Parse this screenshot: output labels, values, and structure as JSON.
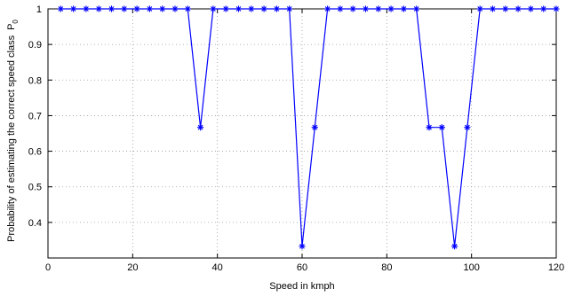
{
  "chart_data": {
    "type": "line",
    "xlabel": "Speed in kmph",
    "ylabel": "Probability of estimating the correct speed class",
    "ylabel_symbol": "P",
    "ylabel_subscript": "0",
    "xlim": [
      0,
      120
    ],
    "ylim": [
      0.3,
      1.0
    ],
    "xticks": [
      0,
      20,
      40,
      60,
      80,
      100,
      120
    ],
    "yticks": [
      0.4,
      0.5,
      0.6,
      0.7,
      0.8,
      0.9,
      1
    ],
    "xtick_labels": [
      "0",
      "20",
      "40",
      "60",
      "80",
      "100",
      "120"
    ],
    "ytick_labels": [
      "0.4",
      "0.5",
      "0.6",
      "0.7",
      "0.8",
      "0.9",
      "1"
    ],
    "grid": true,
    "color": "#0000ff",
    "marker": "star",
    "series": [
      {
        "x": [
          3,
          6,
          9,
          12,
          15,
          18,
          21,
          24,
          27,
          30,
          33,
          36,
          39,
          42,
          45,
          48,
          51,
          54,
          57,
          60,
          63,
          66,
          69,
          72,
          75,
          78,
          81,
          84,
          87,
          90,
          93,
          96,
          99,
          102,
          105,
          108,
          111,
          114,
          117,
          120
        ],
        "values": [
          1,
          1,
          1,
          1,
          1,
          1,
          1,
          1,
          1,
          1,
          1,
          0.667,
          1,
          1,
          1,
          1,
          1,
          1,
          1,
          0.333,
          0.667,
          1,
          1,
          1,
          1,
          1,
          1,
          1,
          1,
          0.667,
          0.667,
          0.333,
          0.667,
          1,
          1,
          1,
          1,
          1,
          1,
          1
        ]
      }
    ]
  }
}
